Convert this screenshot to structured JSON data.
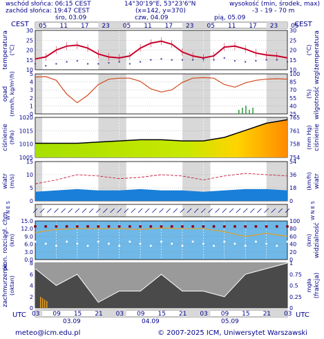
{
  "header": {
    "sunrise": "wschód słońca: 06:15 CEST",
    "sunset": "zachód słońca: 19:47 CEST",
    "coords": "14°30'19\"E, 53°23'6\"N",
    "grid": "(x=142, y=370)",
    "height_label": "wysokość (min, środek, max)",
    "height_values": "-3 - 19 - 70 m"
  },
  "top_axis": {
    "tz_left": "CEST",
    "tz_right": "CEST",
    "hour_ticks": [
      "05",
      "11",
      "17",
      "23",
      "05",
      "11",
      "17",
      "23",
      "05",
      "11",
      "17",
      "23",
      "05"
    ],
    "day_labels": [
      "śro, 03.09",
      "czw, 04.09",
      "pią, 05.09"
    ]
  },
  "bottom_axis": {
    "tz_left": "UTC",
    "tz_right": "UTC",
    "hour_ticks": [
      "03",
      "09",
      "15",
      "21",
      "03",
      "09",
      "15",
      "21",
      "03",
      "09",
      "15",
      "21",
      "03"
    ],
    "dates": [
      "03.09",
      "04.09",
      "05.09"
    ]
  },
  "footer": {
    "email": "meteo@icm.edu.pl",
    "copyright": "© 2007-2025 ICM, Uniwersytet Warszawski"
  },
  "panels": {
    "temperature": {
      "left_title": "temperatura",
      "left_unit": "(°C)",
      "right_title": "temperatura",
      "right_unit": "(°C)",
      "left_ticks": [
        "30",
        "25",
        "20",
        "15",
        "10"
      ],
      "right_ticks": [
        "30",
        "25",
        "20",
        "15",
        "10"
      ]
    },
    "precip": {
      "left_title": "opad",
      "left_unit": "(mm/h, kg/m²/h)",
      "right_title": "wilgotność wzgl.",
      "right_unit": "(%)",
      "left_ticks": [
        "5",
        "4",
        "3",
        "2",
        "1",
        "0"
      ],
      "right_ticks": [
        "100",
        "85",
        "70",
        "55",
        "40",
        "25"
      ]
    },
    "pressure": {
      "left_title": "ciśnienie",
      "left_unit": "(hPa)",
      "right_title": "ciśnienie",
      "right_unit": "(mm Hg)",
      "left_ticks": [
        "1020",
        "1015",
        "1010",
        "1005"
      ],
      "right_ticks": [
        "765",
        "761",
        "758",
        "754"
      ]
    },
    "wind": {
      "left_title": "wiatr",
      "left_unit": "(m/s)",
      "right_title": "wiatr",
      "right_unit": "(km/h)",
      "left_ticks": [
        "15",
        "10",
        "5",
        "0"
      ],
      "right_ticks": [
        "54",
        "36",
        "18",
        "0"
      ]
    },
    "wind_dir": {
      "left": "W N E S",
      "right": "W N E S"
    },
    "clouds": {
      "left_title": "pion. rozciągł. chm.",
      "left_unit": "(km)",
      "right_title": "widzialność",
      "right_unit": "(km)",
      "left_ticks": [
        "15.0",
        "12.0",
        "9.0",
        "6.0",
        "3.0",
        "0.0"
      ],
      "right_ticks": [
        "100",
        "80",
        "60",
        "40",
        "20",
        "0"
      ]
    },
    "cloud_cover": {
      "left_title": "zachmurzenie",
      "left_unit": "(oktan)",
      "right_title": "(frakcja)",
      "right_unit": "mgła",
      "left_ticks": [
        "8",
        "6",
        "4",
        "2",
        "0"
      ],
      "right_ticks": [
        "1",
        "0.75",
        "0.5",
        "0.25",
        "0"
      ]
    }
  },
  "chart_data": [
    {
      "type": "line",
      "title": "temperatura",
      "ylabel": "(°C)",
      "ylim": [
        10,
        30
      ],
      "x_hours_utc_from_start": [
        0,
        3,
        6,
        9,
        12,
        15,
        18,
        21,
        24,
        27,
        30,
        33,
        36,
        39,
        42,
        45,
        48,
        51,
        54,
        57,
        60,
        63,
        66,
        69,
        72
      ],
      "series": [
        {
          "values": [
            15.5,
            16.5,
            20,
            22,
            22.5,
            21,
            18,
            16.5,
            16,
            17,
            21,
            23.5,
            24.5,
            23,
            19,
            17,
            16,
            17,
            21.5,
            22,
            20.5,
            18.5,
            17.5,
            17,
            16
          ]
        },
        {
          "values": [
            13,
            12,
            13,
            14,
            14.5,
            13,
            13,
            13.5,
            14,
            13,
            14,
            15,
            15.5,
            15,
            15,
            15,
            15.5,
            15,
            16,
            14.5,
            14,
            14.5,
            15,
            15,
            14
          ]
        }
      ]
    },
    {
      "type": "line",
      "title": "opad / wilgotność wzgl.",
      "ylabel": "(%)",
      "ylim": [
        25,
        100
      ],
      "x_hours_utc_from_start": [
        0,
        3,
        6,
        9,
        12,
        15,
        18,
        21,
        24,
        27,
        30,
        33,
        36,
        39,
        42,
        45,
        48,
        51,
        54,
        57,
        60,
        63,
        66,
        69,
        72
      ],
      "series": [
        {
          "values": [
            94,
            95,
            88,
            62,
            46,
            60,
            80,
            90,
            92,
            92,
            86,
            72,
            66,
            70,
            84,
            92,
            93,
            92,
            80,
            75,
            83,
            88,
            90,
            91,
            90
          ]
        }
      ],
      "precip_mm_h_peak": 0.8
    },
    {
      "type": "area",
      "title": "ciśnienie",
      "ylabel": "(hPa)",
      "ylim": [
        1005,
        1022
      ],
      "x_hours_utc_from_start": [
        0,
        6,
        12,
        18,
        24,
        30,
        36,
        42,
        48,
        54,
        60,
        66,
        72
      ],
      "series": [
        {
          "values": [
            1011,
            1011,
            1011,
            1011.5,
            1012,
            1012.5,
            1012.5,
            1012,
            1012,
            1013.5,
            1016.5,
            1019.5,
            1021
          ]
        }
      ]
    },
    {
      "type": "line",
      "title": "wiatr",
      "ylabel": "(m/s)",
      "ylim": [
        0,
        15
      ],
      "x_hours_utc_from_start": [
        0,
        6,
        12,
        18,
        24,
        30,
        36,
        42,
        48,
        54,
        60,
        66,
        72
      ],
      "series": [
        {
          "values": [
            3.5,
            4,
            4.5,
            4,
            4,
            4.5,
            4,
            4,
            3.5,
            4,
            4.5,
            4.5,
            4
          ]
        },
        {
          "values": [
            6.5,
            8,
            10,
            9.5,
            8.5,
            9,
            10,
            9.5,
            8,
            9.5,
            10.5,
            10,
            9.5
          ]
        }
      ]
    },
    {
      "type": "line",
      "title": "widzialność",
      "ylabel": "(km)",
      "ylim": [
        0,
        100
      ],
      "x_hours_utc_from_start": [
        0,
        6,
        12,
        18,
        24,
        30,
        36,
        42,
        48,
        54,
        60,
        66,
        72
      ],
      "series": [
        {
          "values": [
            70,
            78,
            80,
            80,
            80,
            78,
            82,
            80,
            80,
            72,
            60,
            68,
            60
          ]
        }
      ]
    },
    {
      "type": "area",
      "title": "zachmurzenie",
      "ylabel": "(oktan)",
      "ylim": [
        0,
        8
      ],
      "x_hours_utc_from_start": [
        0,
        6,
        12,
        18,
        24,
        30,
        36,
        42,
        48,
        54,
        60,
        66,
        72
      ],
      "series": [
        {
          "values": [
            7,
            4,
            6,
            1,
            3,
            3,
            6,
            3,
            3,
            2,
            6,
            7,
            8
          ]
        }
      ]
    }
  ],
  "colors": {
    "temp": "#c8002a",
    "dew": "#4a4aa0",
    "humidity": "#d2491c",
    "precip": "#2a9a3a",
    "pressure_line": "#000000",
    "wind_fill": "#1a7fd8",
    "wind_gust": "#c8002a",
    "cloud_bg": "#6fb8e8",
    "night_shade": "#d8d8d8",
    "text": "#00008b"
  }
}
